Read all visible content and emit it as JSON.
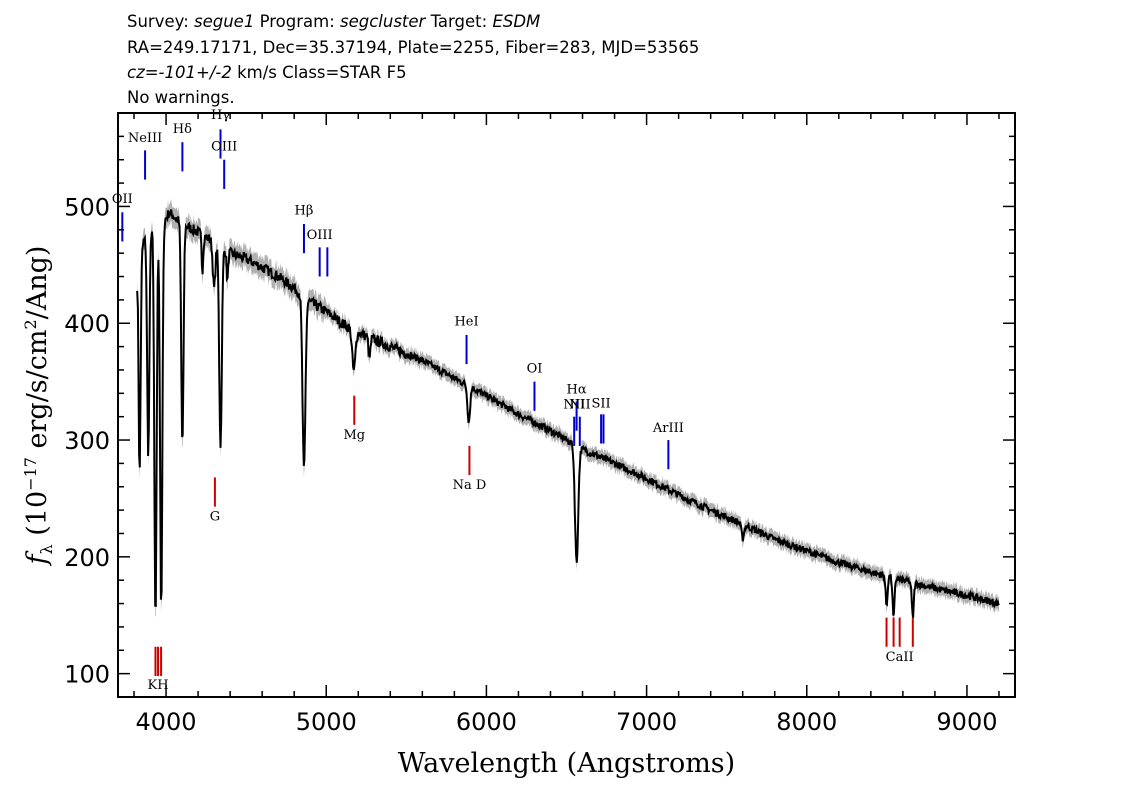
{
  "header": {
    "line1_prefix": "Survey: ",
    "survey": "segue1",
    "program_prefix": " Program: ",
    "program": "segcluster",
    "target_prefix": " Target: ",
    "target": "ESDM",
    "line2": "RA=249.17171, Dec=35.37194, Plate=2255, Fiber=283, MJD=53565",
    "cz_value": "cz=-101+/-2",
    "line3_rest": " km/s Class=STAR F5",
    "line4": "No warnings."
  },
  "chart_data": {
    "type": "line",
    "xlabel": "Wavelength (Angstroms)",
    "ylabel": "fλ (10^-17 erg/s/cm^2/Ang)",
    "ylabel_parts": {
      "f": "f",
      "sub": "λ",
      "a": " (10",
      "exp1": "−17",
      "b": " erg/s/cm",
      "exp2": "2",
      "c": "/Ang)"
    },
    "xlim": [
      3700,
      9300
    ],
    "ylim": [
      80,
      580
    ],
    "x_ticks": [
      4000,
      5000,
      6000,
      7000,
      8000,
      9000
    ],
    "y_ticks": [
      100,
      200,
      300,
      400,
      500
    ],
    "spectrum_color": "#000000",
    "error_band_color": "#b0b0b0",
    "emission_color": "#0000cc",
    "absorption_color": "#cc0000",
    "continuum": [
      [
        3820,
        440
      ],
      [
        3860,
        470
      ],
      [
        3900,
        482
      ],
      [
        3960,
        480
      ],
      [
        4020,
        495
      ],
      [
        4100,
        485
      ],
      [
        4200,
        478
      ],
      [
        4300,
        470
      ],
      [
        4400,
        460
      ],
      [
        4500,
        455
      ],
      [
        4600,
        448
      ],
      [
        4700,
        440
      ],
      [
        4800,
        430
      ],
      [
        4900,
        418
      ],
      [
        5000,
        410
      ],
      [
        5100,
        400
      ],
      [
        5200,
        392
      ],
      [
        5400,
        380
      ],
      [
        5600,
        368
      ],
      [
        5800,
        353
      ],
      [
        6000,
        338
      ],
      [
        6200,
        322
      ],
      [
        6400,
        308
      ],
      [
        6500,
        300
      ],
      [
        6600,
        292
      ],
      [
        6800,
        280
      ],
      [
        7000,
        267
      ],
      [
        7200,
        253
      ],
      [
        7400,
        240
      ],
      [
        7600,
        228
      ],
      [
        7800,
        215
      ],
      [
        8000,
        205
      ],
      [
        8200,
        195
      ],
      [
        8400,
        187
      ],
      [
        8600,
        180
      ],
      [
        8800,
        173
      ],
      [
        9000,
        167
      ],
      [
        9200,
        160
      ]
    ],
    "absorption_dips": [
      {
        "wave": 3835,
        "depth": 180,
        "width": 6
      },
      {
        "wave": 3889,
        "depth": 190,
        "width": 7
      },
      {
        "wave": 3934,
        "depth": 340,
        "width": 7
      },
      {
        "wave": 3970,
        "depth": 330,
        "width": 7
      },
      {
        "wave": 4102,
        "depth": 190,
        "width": 7
      },
      {
        "wave": 4227,
        "depth": 30,
        "width": 5
      },
      {
        "wave": 4300,
        "depth": 40,
        "width": 8
      },
      {
        "wave": 4340,
        "depth": 170,
        "width": 8
      },
      {
        "wave": 4383,
        "depth": 25,
        "width": 5
      },
      {
        "wave": 4861,
        "depth": 150,
        "width": 9
      },
      {
        "wave": 5172,
        "depth": 35,
        "width": 10
      },
      {
        "wave": 5270,
        "depth": 18,
        "width": 6
      },
      {
        "wave": 5890,
        "depth": 30,
        "width": 8
      },
      {
        "wave": 6563,
        "depth": 100,
        "width": 10
      },
      {
        "wave": 7600,
        "depth": 12,
        "width": 8
      },
      {
        "wave": 8498,
        "depth": 25,
        "width": 6
      },
      {
        "wave": 8542,
        "depth": 35,
        "width": 6
      },
      {
        "wave": 8662,
        "depth": 30,
        "width": 6
      }
    ],
    "lines": [
      {
        "label": "OII",
        "wave": 3727,
        "kind": "emission",
        "y_top": 495,
        "y_bot": 470,
        "label_y": 503
      },
      {
        "label": "NeIII",
        "wave": 3869,
        "kind": "emission",
        "y_top": 548,
        "y_bot": 523,
        "label_y": 555
      },
      {
        "label": "Hδ",
        "wave": 4102,
        "kind": "emission",
        "y_top": 555,
        "y_bot": 530,
        "label_y": 563
      },
      {
        "label": "Hγ",
        "wave": 4340,
        "kind": "emission",
        "y_top": 566,
        "y_bot": 541,
        "label_y": 575
      },
      {
        "label": "OIII",
        "wave": 4363,
        "kind": "emission",
        "y_top": 540,
        "y_bot": 515,
        "label_y": 548
      },
      {
        "label": "Hβ",
        "wave": 4861,
        "kind": "emission",
        "y_top": 485,
        "y_bot": 460,
        "label_y": 493
      },
      {
        "label": "OIII",
        "wave": 4959,
        "kind": "emission",
        "y_top": 465,
        "y_bot": 440,
        "label_y": 472
      },
      {
        "label": "",
        "wave": 5007,
        "kind": "emission",
        "y_top": 465,
        "y_bot": 440,
        "label_y": 472
      },
      {
        "label": "HeI",
        "wave": 5876,
        "kind": "emission",
        "y_top": 390,
        "y_bot": 365,
        "label_y": 398
      },
      {
        "label": "OI",
        "wave": 6300,
        "kind": "emission",
        "y_top": 350,
        "y_bot": 325,
        "label_y": 358
      },
      {
        "label": "NII",
        "wave": 6548,
        "kind": "emission",
        "y_top": 320,
        "y_bot": 295,
        "label_y": 327
      },
      {
        "label": "Hα",
        "wave": 6563,
        "kind": "emission",
        "y_top": 333,
        "y_bot": 308,
        "label_y": 340
      },
      {
        "label": "NII",
        "wave": 6583,
        "kind": "emission",
        "y_top": 320,
        "y_bot": 295,
        "label_y": 327
      },
      {
        "label": "SII",
        "wave": 6716,
        "kind": "emission",
        "y_top": 322,
        "y_bot": 297,
        "label_y": 328
      },
      {
        "label": "",
        "wave": 6731,
        "kind": "emission",
        "y_top": 322,
        "y_bot": 297,
        "label_y": 328
      },
      {
        "label": "ArIII",
        "wave": 7136,
        "kind": "emission",
        "y_top": 300,
        "y_bot": 275,
        "label_y": 307
      },
      {
        "label": "KH",
        "wave": 3950,
        "kind": "absorption",
        "y_top": 123,
        "y_bot": 98,
        "label_y": 87
      },
      {
        "label": "",
        "wave": 3934,
        "kind": "absorption",
        "y_top": 123,
        "y_bot": 98,
        "label_y": 87
      },
      {
        "label": "",
        "wave": 3969,
        "kind": "absorption",
        "y_top": 123,
        "y_bot": 98,
        "label_y": 87
      },
      {
        "label": "G",
        "wave": 4305,
        "kind": "absorption",
        "y_top": 268,
        "y_bot": 243,
        "label_y": 231
      },
      {
        "label": "Mg",
        "wave": 5175,
        "kind": "absorption",
        "y_top": 338,
        "y_bot": 313,
        "label_y": 301
      },
      {
        "label": "Na D",
        "wave": 5894,
        "kind": "absorption",
        "y_top": 295,
        "y_bot": 270,
        "label_y": 258
      },
      {
        "label": "CaII",
        "wave": 8580,
        "kind": "absorption",
        "y_top": 148,
        "y_bot": 123,
        "label_y": 111
      },
      {
        "label": "",
        "wave": 8498,
        "kind": "absorption",
        "y_top": 148,
        "y_bot": 123,
        "label_y": 111
      },
      {
        "label": "",
        "wave": 8542,
        "kind": "absorption",
        "y_top": 148,
        "y_bot": 123,
        "label_y": 111
      },
      {
        "label": "",
        "wave": 8662,
        "kind": "absorption",
        "y_top": 148,
        "y_bot": 123,
        "label_y": 111
      }
    ]
  }
}
